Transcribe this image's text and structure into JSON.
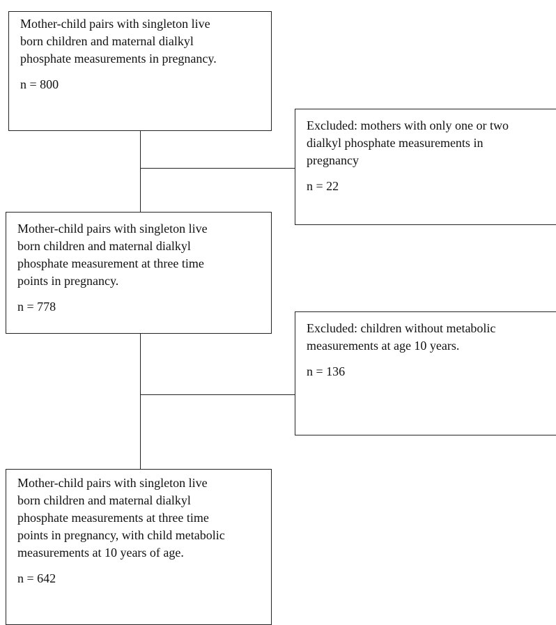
{
  "flowchart": {
    "boxes": [
      {
        "text": "Mother-child pairs with singleton live\nborn children and maternal dialkyl\nphosphate measurements in pregnancy.",
        "count": "n = 800"
      },
      {
        "text": "Excluded: mothers with only one or two\ndialkyl phosphate measurements in\npregnancy",
        "count": "n = 22"
      },
      {
        "text": "Mother-child pairs with singleton live\nborn children and maternal dialkyl\nphosphate measurement at three time\npoints in pregnancy.",
        "count": "n = 778"
      },
      {
        "text": "Excluded: children without metabolic\nmeasurements at age 10 years.",
        "count": "n = 136"
      },
      {
        "text": "Mother-child pairs with singleton live\nborn children and maternal dialkyl\nphosphate measurements at three time\npoints in pregnancy, with child metabolic\nmeasurements at 10 years of age.",
        "count": "n = 642"
      }
    ]
  }
}
